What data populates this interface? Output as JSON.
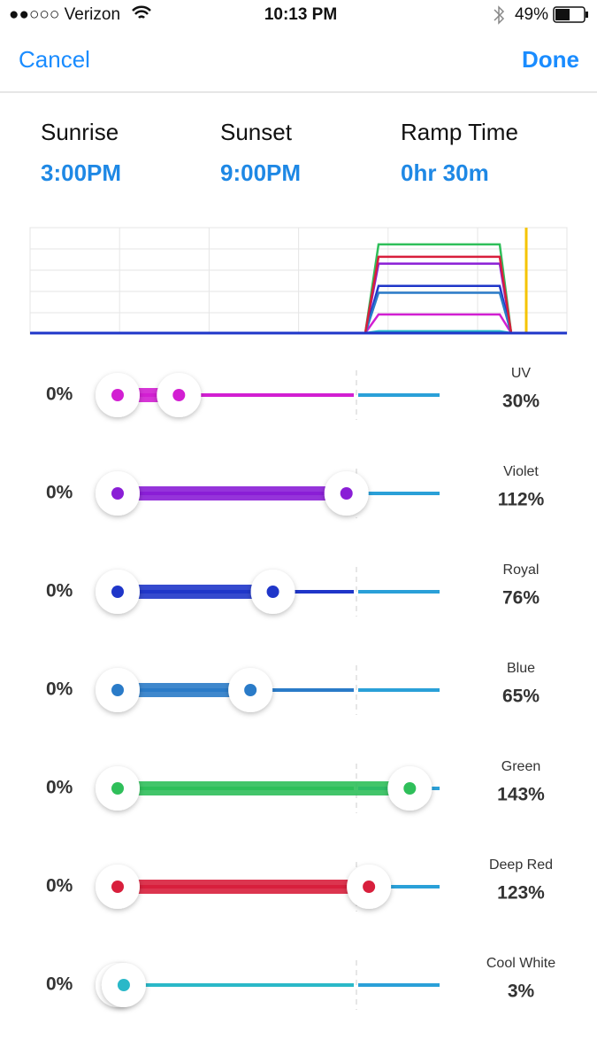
{
  "status_bar": {
    "carrier": "●●○○○ Verizon",
    "time": "10:13 PM",
    "battery": "49%"
  },
  "nav": {
    "cancel": "Cancel",
    "done": "Done"
  },
  "schedule": [
    {
      "label": "Sunrise",
      "value": "3:00PM"
    },
    {
      "label": "Sunset",
      "value": "9:00PM"
    },
    {
      "label": "Ramp Time",
      "value": "0hr 30m"
    }
  ],
  "channels": [
    {
      "name": "UV",
      "min_label": "0%",
      "value_label": "30%",
      "min": 0,
      "value": 30,
      "color": "#d21fd2"
    },
    {
      "name": "Violet",
      "min_label": "0%",
      "value_label": "112%",
      "min": 0,
      "value": 112,
      "color": "#8a1ed6"
    },
    {
      "name": "Royal",
      "min_label": "0%",
      "value_label": "76%",
      "min": 0,
      "value": 76,
      "color": "#1f36c9"
    },
    {
      "name": "Blue",
      "min_label": "0%",
      "value_label": "65%",
      "min": 0,
      "value": 65,
      "color": "#2a7bc8"
    },
    {
      "name": "Green",
      "min_label": "0%",
      "value_label": "143%",
      "min": 0,
      "value": 143,
      "color": "#2fbf5a"
    },
    {
      "name": "Deep Red",
      "min_label": "0%",
      "value_label": "123%",
      "min": 0,
      "value": 123,
      "color": "#d81f3c"
    },
    {
      "name": "Cool White",
      "min_label": "0%",
      "value_label": "3%",
      "min": 0,
      "value": 3,
      "color": "#2ab8c8"
    }
  ]
}
